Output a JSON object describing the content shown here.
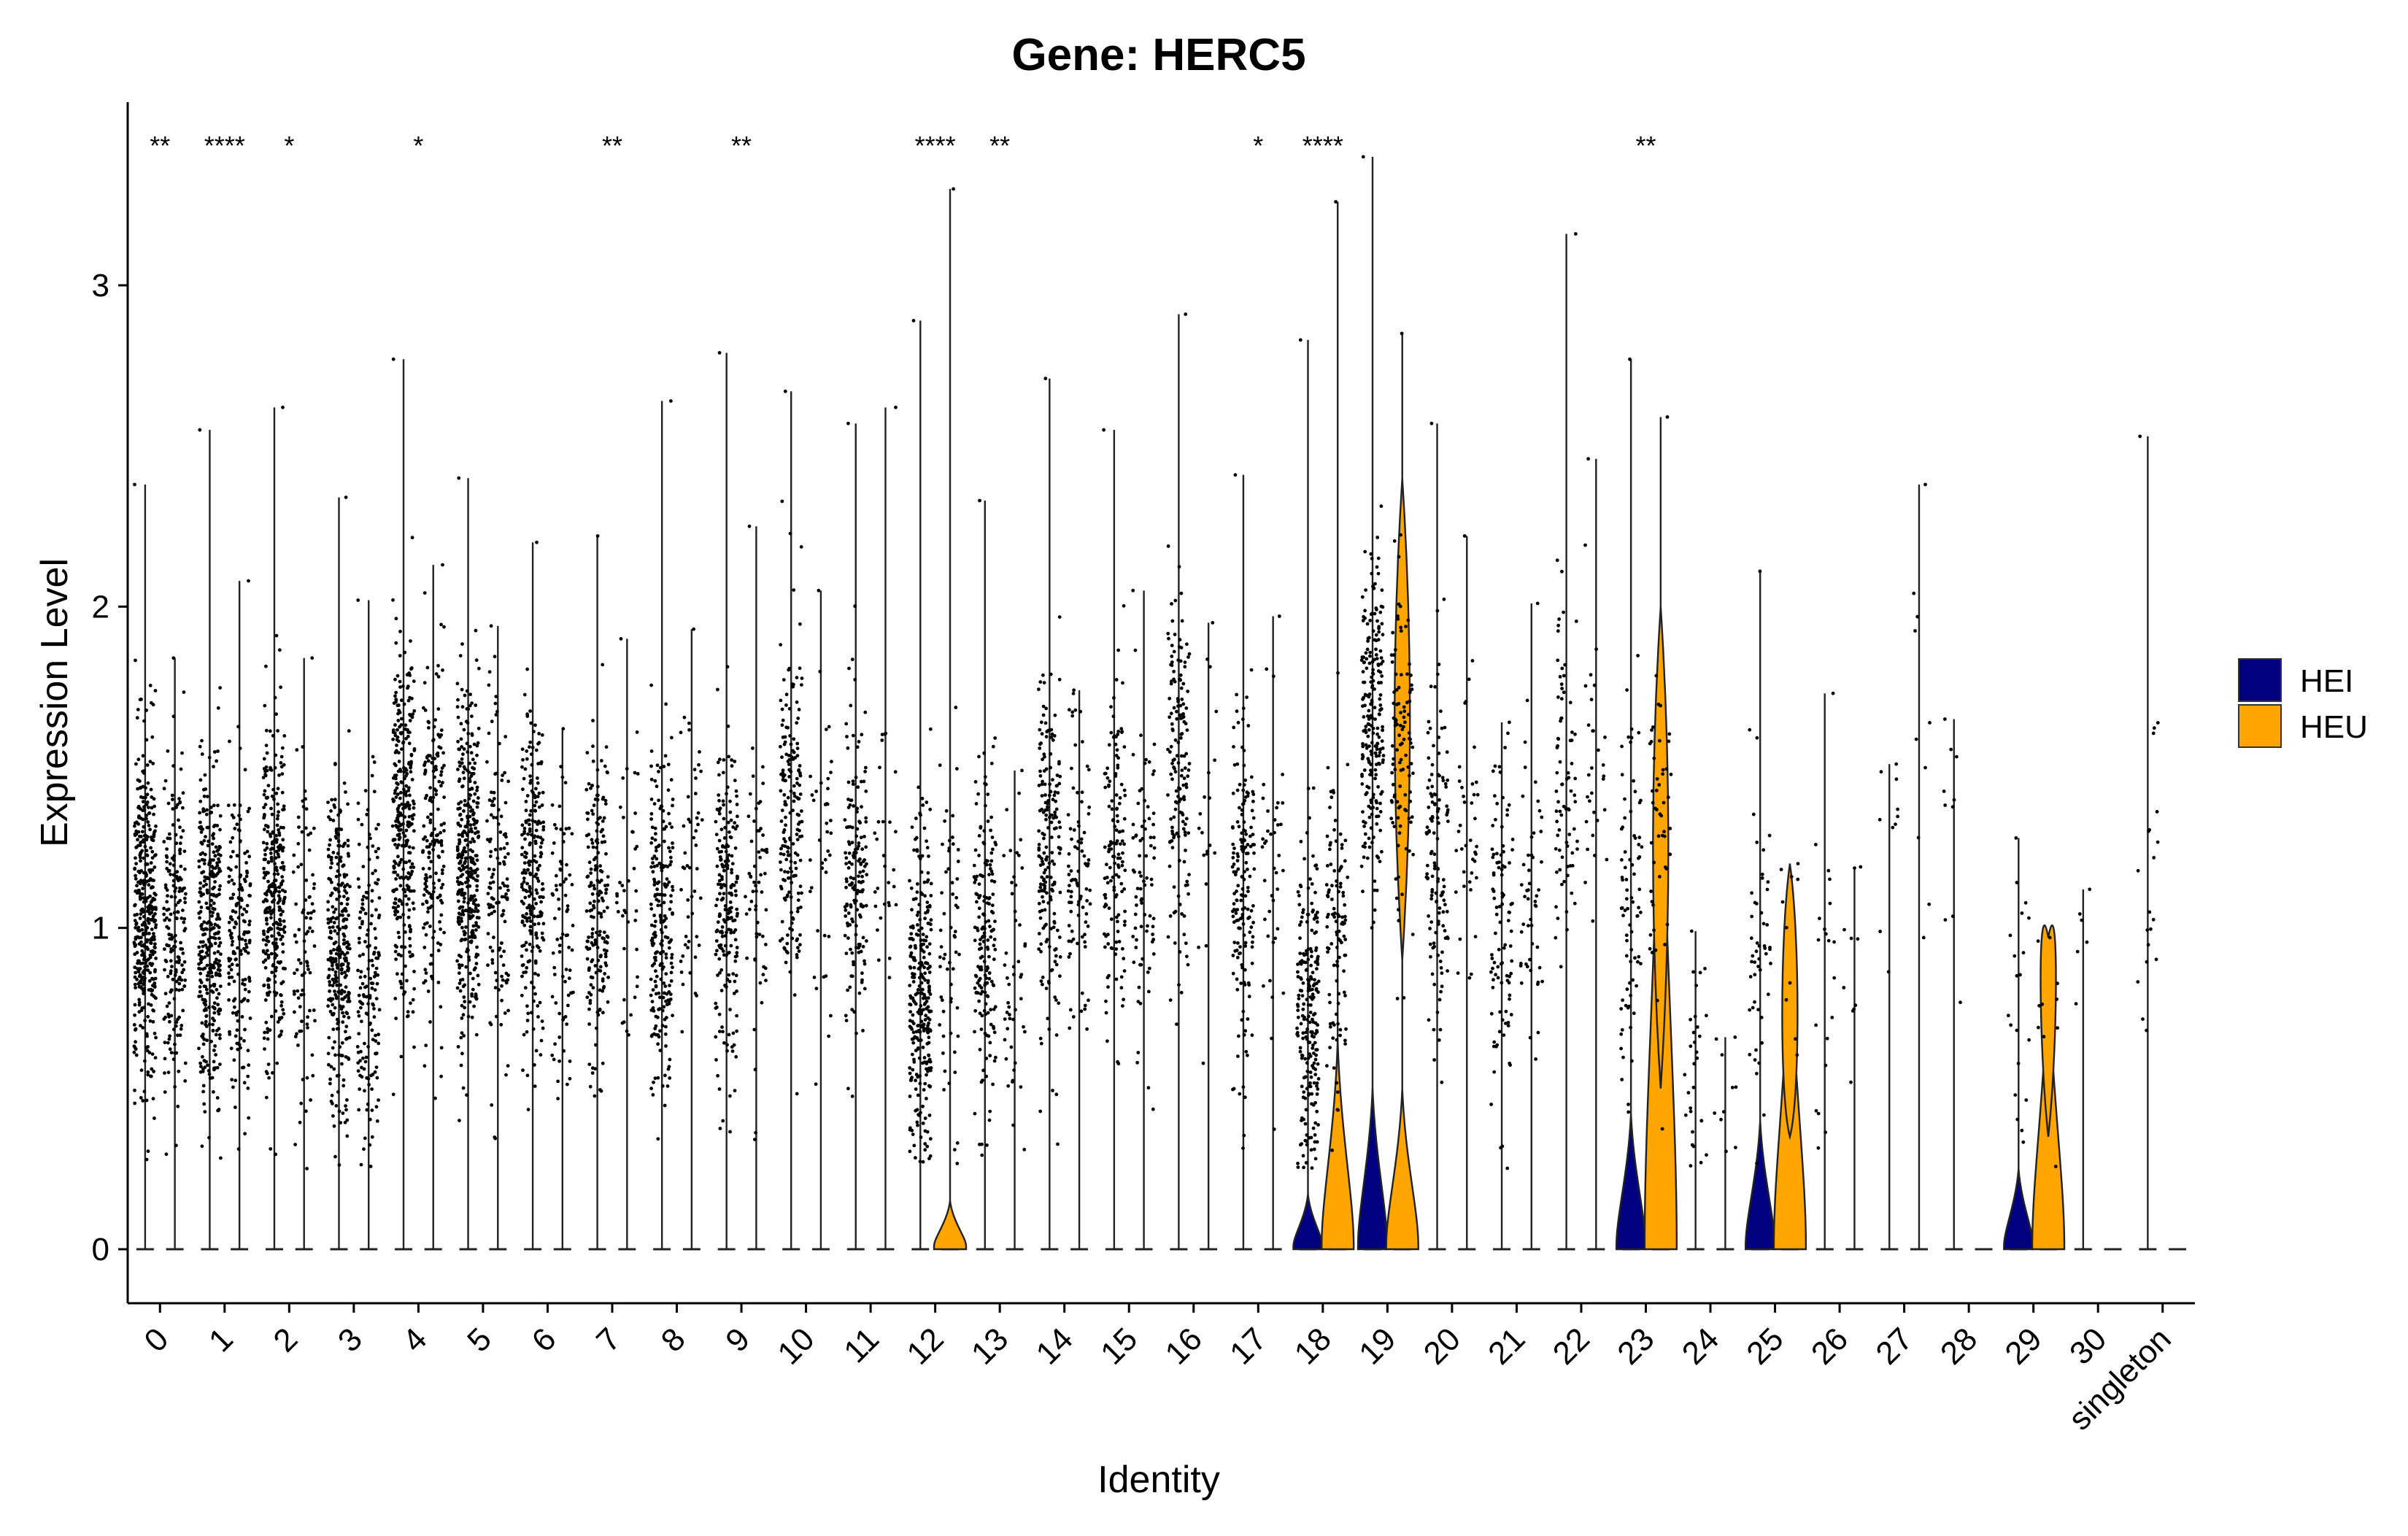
{
  "chart_data": {
    "type": "violin",
    "title": "Gene: HERC5",
    "xlabel": "Identity",
    "ylabel": "Expression Level",
    "ylim": [
      -0.17,
      3.55
    ],
    "yticks": [
      0,
      1,
      2,
      3
    ],
    "categories": [
      "0",
      "1",
      "2",
      "3",
      "4",
      "5",
      "6",
      "7",
      "8",
      "9",
      "10",
      "11",
      "12",
      "13",
      "14",
      "15",
      "16",
      "17",
      "18",
      "19",
      "20",
      "21",
      "22",
      "23",
      "24",
      "25",
      "26",
      "27",
      "28",
      "29",
      "30",
      "singleton"
    ],
    "legend": {
      "position": "right",
      "entries": [
        {
          "name": "HEI",
          "color": "#000080"
        },
        {
          "name": "HEU",
          "color": "#FFA500"
        }
      ]
    },
    "significance": [
      "**",
      "****",
      "*",
      "",
      "*",
      "",
      "",
      "**",
      "",
      "**",
      "",
      "",
      "****",
      "**",
      "",
      "",
      "",
      "*",
      "****",
      "",
      "",
      "",
      "",
      "**",
      "",
      "",
      "",
      "",
      "",
      "",
      "",
      ""
    ],
    "series": [
      {
        "name": "HEI",
        "max_values": [
          2.38,
          2.55,
          2.62,
          2.34,
          2.77,
          2.4,
          2.2,
          2.22,
          2.64,
          2.79,
          2.67,
          2.57,
          2.89,
          2.33,
          2.71,
          2.55,
          2.91,
          2.41,
          2.83,
          3.4,
          2.57,
          1.64,
          3.16,
          2.77,
          0.99,
          2.11,
          1.73,
          1.51,
          1.65,
          1.28,
          1.12,
          2.53
        ],
        "median_nonzero": [
          1.05,
          1.0,
          1.1,
          0.95,
          1.35,
          1.2,
          1.15,
          1.05,
          1.05,
          1.1,
          1.35,
          1.15,
          0.8,
          0.95,
          1.25,
          1.2,
          1.5,
          1.1,
          0.75,
          1.6,
          1.2,
          1.0,
          1.4,
          1.05,
          0.55,
          0.9,
          0.85,
          1.2,
          1.3,
          0.8,
          1.05,
          1.2
        ],
        "n_points": [
          420,
          340,
          320,
          300,
          320,
          360,
          240,
          190,
          230,
          210,
          190,
          160,
          300,
          180,
          190,
          140,
          160,
          170,
          230,
          230,
          130,
          100,
          80,
          80,
          30,
          50,
          20,
          10,
          10,
          20,
          6,
          20
        ],
        "zero_bump": [
          0,
          0,
          0,
          0,
          0,
          0,
          0,
          0,
          0,
          0,
          0,
          0,
          0,
          0,
          0,
          0,
          0,
          0,
          0.17,
          0.5,
          0,
          0,
          0,
          0.42,
          0,
          0.4,
          0,
          0,
          0,
          0.25,
          0,
          0
        ]
      },
      {
        "name": "HEU",
        "max_values": [
          1.84,
          2.08,
          1.84,
          2.02,
          2.13,
          1.94,
          1.62,
          1.9,
          1.93,
          2.25,
          2.05,
          2.62,
          3.3,
          1.49,
          1.74,
          2.05,
          1.95,
          1.97,
          3.26,
          2.85,
          2.22,
          2.01,
          2.46,
          2.59,
          0.66,
          1.2,
          1.19,
          2.38,
          0,
          0.97,
          0,
          0
        ],
        "median_nonzero": [
          1.0,
          0.95,
          1.0,
          0.85,
          1.3,
          1.1,
          1.0,
          1.1,
          1.2,
          1.1,
          1.3,
          1.2,
          1.0,
          0.9,
          1.2,
          1.1,
          1.3,
          1.2,
          1.0,
          1.6,
          1.3,
          1.1,
          1.5,
          1.3,
          0.55,
          1.05,
          0.9,
          1.5,
          0,
          0.9,
          0,
          0
        ],
        "n_points": [
          200,
          180,
          90,
          170,
          180,
          130,
          80,
          40,
          50,
          60,
          40,
          30,
          60,
          50,
          90,
          80,
          20,
          40,
          110,
          110,
          40,
          50,
          30,
          50,
          10,
          10,
          10,
          10,
          0,
          10,
          0,
          0
        ],
        "zero_bump": [
          0,
          0,
          0,
          0,
          0,
          0,
          0,
          0,
          0,
          0,
          0,
          0,
          0.15,
          0,
          0,
          0,
          0,
          0,
          0.65,
          0.5,
          0,
          0,
          0,
          1.8,
          0,
          1.0,
          0,
          0,
          0,
          0.9,
          0,
          0
        ],
        "upper_violin_center": [
          0,
          0,
          0,
          0,
          0,
          0,
          0,
          0,
          0,
          0,
          0,
          0,
          0,
          0,
          0,
          0,
          0,
          0,
          0,
          1.65,
          0,
          0,
          0,
          1.25,
          0,
          0.72,
          0,
          0,
          0,
          0.9,
          0,
          0
        ]
      }
    ]
  }
}
